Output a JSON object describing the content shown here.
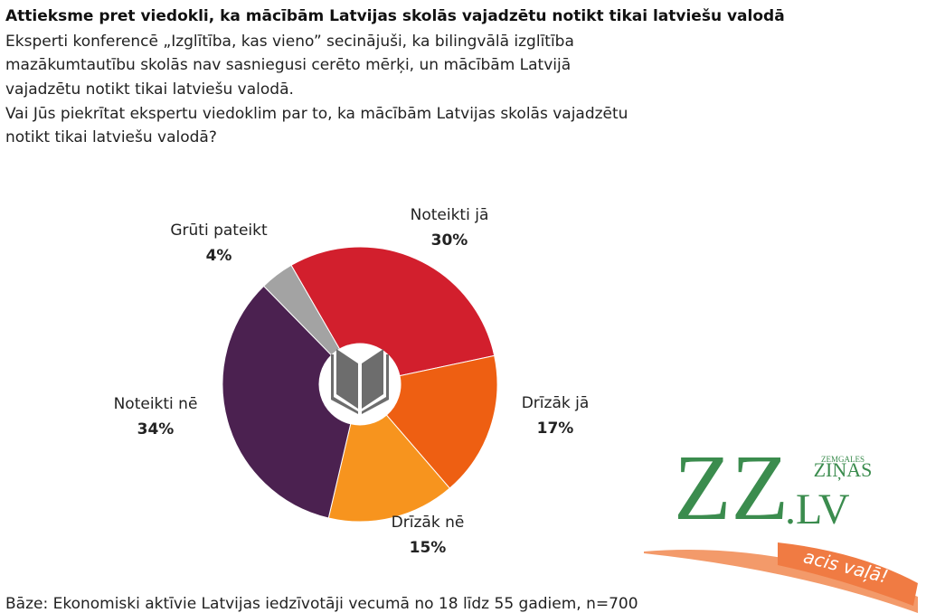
{
  "chart_data": {
    "type": "donut",
    "title": "Attieksme pret viedokli, ka mācībām Latvijas skolās vajadzētu notikt tikai latviešu valodā",
    "subtitle": [
      "Eksperti konferencē „Izglītība, kas vieno” secinājuši, ka bilingvālā izglītība",
      "mazākumtautību skolās nav sasniegusi cerēto mērķi, un mācībām Latvijā",
      "vajadzētu notikt tikai latviešu valodā.",
      "Vai Jūs piekrītat ekspertu viedoklim par to, ka mācībām Latvijas skolās vajadzētu",
      "notikt tikai latviešu valodā?"
    ],
    "categories": [
      "Noteikti jā",
      "Drīzāk jā",
      "Drīzāk nē",
      "Noteikti nē",
      "Grūti pateikt"
    ],
    "values": [
      30,
      17,
      15,
      34,
      4
    ],
    "value_labels": [
      "30%",
      "17%",
      "15%",
      "34%",
      "4%"
    ],
    "colors": [
      "#d21f2d",
      "#ee5f12",
      "#f7941e",
      "#4b2150",
      "#a3a3a3"
    ],
    "footnote": "Bāze: Ekonomiski aktīvie Latvijas iedzīvotāji vecumā no 18 līdz 55 gadiem, n=700"
  },
  "logo": {
    "mark": "ZZ",
    "domain": ".LV",
    "name_top": "ZEMGALES",
    "name_bottom": "ZIŅAS",
    "slogan": "acis vaļā!"
  }
}
